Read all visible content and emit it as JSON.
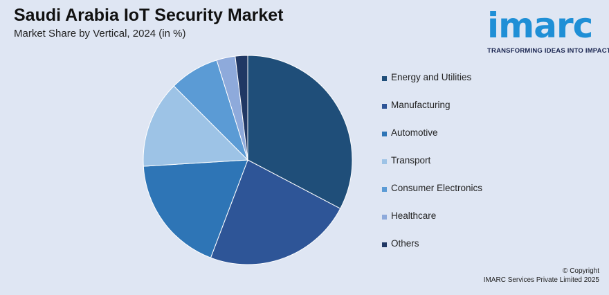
{
  "header": {
    "title": "Saudi Arabia IoT Security Market",
    "subtitle": "Market Share by Vertical, 2024 (in %)"
  },
  "logo": {
    "word": "imarc",
    "tagline": "TRANSFORMING IDEAS INTO IMPACT",
    "color": "#1f8fd6"
  },
  "chart_data": {
    "type": "pie",
    "title": "Saudi Arabia IoT Security Market",
    "subtitle": "Market Share by Vertical, 2024 (in %)",
    "categories": [
      "Energy and Utilities",
      "Manufacturing",
      "Automotive",
      "Transport",
      "Consumer Electronics",
      "Healthcare",
      "Others"
    ],
    "values": [
      34,
      24,
      19,
      14,
      8,
      3,
      2
    ],
    "colors": [
      "#1f4e79",
      "#2e5597",
      "#2e75b6",
      "#9dc3e6",
      "#5b9bd5",
      "#8eaadb",
      "#203864"
    ],
    "legend_position": "right"
  },
  "footer": {
    "line1": "© Copyright",
    "line2": "IMARC Services Private Limited 2025"
  }
}
